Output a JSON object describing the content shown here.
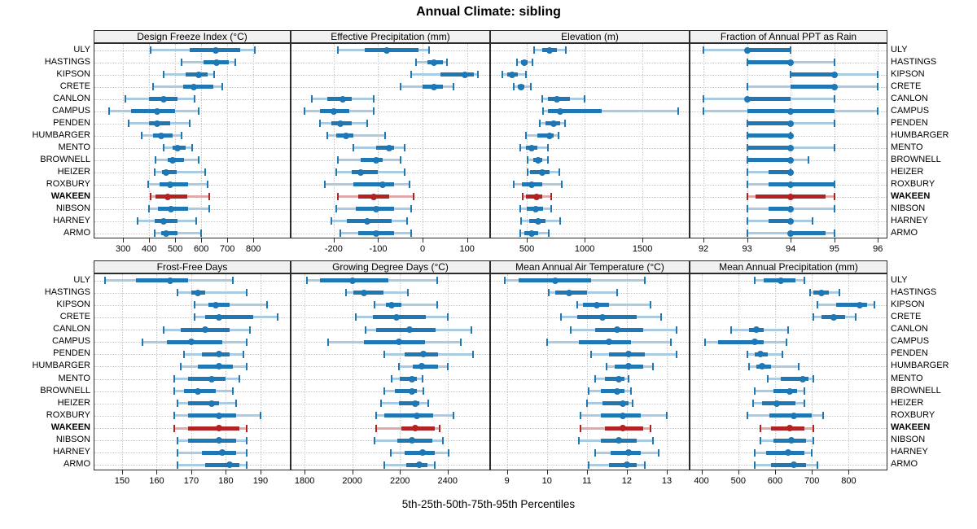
{
  "title": "Annual Climate: sibling",
  "caption": "5th-25th-50th-75th-95th Percentiles",
  "colors": {
    "series": "#1f77b4",
    "series_soft": "#aacbe2",
    "highlight": "#b22222",
    "highlight_soft": "#e1abab",
    "header_bg": "#f0f0f0",
    "panel_border": "#2b2b2b",
    "grid": "#c9c9c9"
  },
  "chart_data": {
    "type": "percentile_dotplot",
    "percentile_labels": [
      "5th",
      "25th",
      "50th",
      "75th",
      "95th"
    ],
    "grid": "dotted",
    "stations": [
      "ULY",
      "HASTINGS",
      "KIPSON",
      "CRETE",
      "CANLON",
      "CAMPUS",
      "PENDEN",
      "HUMBARGER",
      "MENTO",
      "BROWNELL",
      "HEIZER",
      "ROXBURY",
      "WAKEEN",
      "NIBSON",
      "HARNEY",
      "ARMO"
    ],
    "highlight_station": "WAKEEN",
    "panels": [
      {
        "title": "Design Freeze Index (°C)",
        "group": "top",
        "axis_domain": [
          190,
          940
        ],
        "ticks": [
          300,
          400,
          500,
          600,
          700,
          800
        ],
        "values": [
          [
            405,
            555,
            655,
            750,
            805
          ],
          [
            525,
            610,
            660,
            705,
            730
          ],
          [
            455,
            540,
            590,
            625,
            650
          ],
          [
            415,
            530,
            570,
            645,
            680
          ],
          [
            310,
            400,
            455,
            510,
            575
          ],
          [
            245,
            330,
            430,
            500,
            590
          ],
          [
            320,
            400,
            430,
            480,
            555
          ],
          [
            370,
            415,
            445,
            490,
            525
          ],
          [
            455,
            490,
            510,
            540,
            565
          ],
          [
            425,
            470,
            490,
            535,
            590
          ],
          [
            420,
            450,
            465,
            505,
            615
          ],
          [
            395,
            440,
            480,
            550,
            625
          ],
          [
            405,
            425,
            470,
            545,
            630
          ],
          [
            400,
            435,
            485,
            550,
            630
          ],
          [
            355,
            420,
            455,
            510,
            580
          ],
          [
            420,
            445,
            465,
            510,
            600
          ]
        ]
      },
      {
        "title": "Effective Precipitation (mm)",
        "group": "top",
        "axis_domain": [
          -295,
          150
        ],
        "ticks": [
          -200,
          -100,
          0,
          100
        ],
        "values": [
          [
            -190,
            -130,
            -80,
            -10,
            15
          ],
          [
            -15,
            10,
            25,
            45,
            55
          ],
          [
            -25,
            40,
            95,
            115,
            125
          ],
          [
            -50,
            0,
            25,
            45,
            70
          ],
          [
            -250,
            -215,
            -180,
            -160,
            -110
          ],
          [
            -265,
            -230,
            -200,
            -165,
            -110
          ],
          [
            -230,
            -205,
            -185,
            -160,
            -125
          ],
          [
            -215,
            -195,
            -172,
            -155,
            -85
          ],
          [
            -155,
            -105,
            -75,
            -65,
            -40
          ],
          [
            -190,
            -140,
            -105,
            -90,
            -50
          ],
          [
            -195,
            -160,
            -140,
            -100,
            -40
          ],
          [
            -220,
            -155,
            -90,
            -65,
            -30
          ],
          [
            -190,
            -145,
            -110,
            -75,
            -20
          ],
          [
            -195,
            -150,
            -105,
            -65,
            -25
          ],
          [
            -205,
            -170,
            -125,
            -70,
            -35
          ],
          [
            -185,
            -145,
            -105,
            -65,
            -25
          ]
        ]
      },
      {
        "title": "Elevation (m)",
        "group": "top",
        "axis_domain": [
          190,
          1900
        ],
        "ticks": [
          500,
          1000,
          1500
        ],
        "values": [
          [
            560,
            630,
            700,
            760,
            840
          ],
          [
            415,
            450,
            480,
            510,
            550
          ],
          [
            290,
            330,
            375,
            420,
            490
          ],
          [
            390,
            420,
            450,
            480,
            535
          ],
          [
            630,
            680,
            760,
            870,
            1000
          ],
          [
            640,
            680,
            790,
            1150,
            1810
          ],
          [
            610,
            660,
            730,
            790,
            830
          ],
          [
            490,
            590,
            700,
            730,
            775
          ],
          [
            445,
            495,
            545,
            590,
            680
          ],
          [
            510,
            555,
            595,
            630,
            685
          ],
          [
            510,
            530,
            635,
            700,
            780
          ],
          [
            390,
            460,
            540,
            630,
            805
          ],
          [
            465,
            495,
            585,
            635,
            710
          ],
          [
            445,
            500,
            575,
            640,
            710
          ],
          [
            450,
            520,
            600,
            660,
            790
          ],
          [
            440,
            480,
            545,
            600,
            690
          ]
        ]
      },
      {
        "title": "Fraction of Annual PPT as Rain",
        "group": "top",
        "axis_domain": [
          91.7,
          96.2
        ],
        "ticks": [
          92,
          93,
          94,
          95,
          96
        ],
        "values": [
          [
            92,
            93,
            93,
            94,
            94
          ],
          [
            93,
            93,
            94,
            94,
            95
          ],
          [
            94,
            94,
            95,
            95,
            96
          ],
          [
            93,
            94,
            95,
            95,
            96
          ],
          [
            92,
            93,
            93,
            94,
            95
          ],
          [
            92,
            93,
            94,
            95,
            96
          ],
          [
            93,
            93,
            94,
            94,
            95
          ],
          [
            93,
            93,
            94,
            94,
            94
          ],
          [
            93,
            93,
            94,
            94,
            95
          ],
          [
            93,
            93,
            94,
            94,
            94.4
          ],
          [
            93,
            93.5,
            94,
            94,
            94
          ],
          [
            93,
            93.5,
            94,
            95,
            95
          ],
          [
            93,
            93.2,
            94,
            94.8,
            95
          ],
          [
            93,
            93.5,
            94,
            94,
            95
          ],
          [
            93,
            93.5,
            94,
            94,
            94.5
          ],
          [
            93,
            94,
            94,
            94.8,
            95
          ]
        ]
      },
      {
        "title": "Frost-Free Days",
        "group": "bottom",
        "axis_domain": [
          142,
          198.5
        ],
        "ticks": [
          150,
          160,
          170,
          180,
          190
        ],
        "values": [
          [
            145,
            154,
            164,
            169,
            182
          ],
          [
            166,
            170,
            172,
            174,
            186
          ],
          [
            171,
            175,
            177,
            181,
            192
          ],
          [
            171,
            174,
            178,
            188,
            195
          ],
          [
            162,
            167,
            174,
            181,
            187
          ],
          [
            156,
            163,
            170,
            179,
            186
          ],
          [
            168,
            173,
            178,
            181,
            185
          ],
          [
            167,
            172,
            178,
            182,
            186
          ],
          [
            165,
            169,
            176,
            180,
            184
          ],
          [
            165,
            168,
            172,
            177,
            182
          ],
          [
            166,
            169,
            176,
            178,
            183
          ],
          [
            165,
            169,
            178,
            183,
            190
          ],
          [
            165,
            169,
            178,
            184,
            186
          ],
          [
            166,
            169,
            178,
            183,
            186
          ],
          [
            166,
            173,
            179,
            183,
            186
          ],
          [
            166,
            174,
            181,
            184,
            186
          ]
        ]
      },
      {
        "title": "Growing Degree Days (°C)",
        "group": "bottom",
        "axis_domain": [
          1745,
          2575
        ],
        "ticks": [
          1800,
          2000,
          2200,
          2400
        ],
        "values": [
          [
            1810,
            1865,
            2000,
            2150,
            2355
          ],
          [
            1975,
            2005,
            2050,
            2130,
            2235
          ],
          [
            2095,
            2140,
            2165,
            2205,
            2355
          ],
          [
            2015,
            2085,
            2185,
            2310,
            2400
          ],
          [
            2055,
            2100,
            2240,
            2350,
            2500
          ],
          [
            1900,
            2050,
            2195,
            2305,
            2455
          ],
          [
            2135,
            2220,
            2300,
            2360,
            2505
          ],
          [
            2195,
            2255,
            2290,
            2360,
            2400
          ],
          [
            2165,
            2200,
            2250,
            2270,
            2295
          ],
          [
            2135,
            2180,
            2250,
            2270,
            2300
          ],
          [
            2120,
            2195,
            2265,
            2280,
            2320
          ],
          [
            2100,
            2135,
            2270,
            2340,
            2425
          ],
          [
            2100,
            2205,
            2265,
            2345,
            2365
          ],
          [
            2095,
            2190,
            2250,
            2335,
            2380
          ],
          [
            2160,
            2220,
            2295,
            2345,
            2405
          ],
          [
            2135,
            2225,
            2280,
            2315,
            2345
          ]
        ]
      },
      {
        "title": "Mean Annual Air Temperature (°C)",
        "group": "bottom",
        "axis_domain": [
          8.6,
          13.55
        ],
        "ticks": [
          9,
          10,
          11,
          12,
          13
        ],
        "values": [
          [
            8.95,
            9.3,
            10.2,
            11.1,
            12.45
          ],
          [
            10.05,
            10.2,
            10.55,
            11.0,
            11.75
          ],
          [
            10.75,
            10.9,
            11.25,
            11.55,
            12.6
          ],
          [
            10.35,
            10.75,
            11.4,
            12.25,
            12.85
          ],
          [
            10.6,
            11.2,
            11.75,
            12.4,
            13.25
          ],
          [
            10.0,
            10.8,
            11.55,
            12.1,
            13.1
          ],
          [
            11.1,
            11.55,
            12.05,
            12.45,
            13.25
          ],
          [
            11.5,
            11.7,
            12.05,
            12.4,
            12.65
          ],
          [
            11.2,
            11.45,
            11.8,
            11.95,
            12.05
          ],
          [
            11.05,
            11.35,
            11.75,
            11.95,
            12.1
          ],
          [
            11.0,
            11.4,
            11.9,
            12.05,
            12.15
          ],
          [
            10.85,
            11.35,
            11.9,
            12.35,
            13.0
          ],
          [
            10.85,
            11.45,
            11.9,
            12.4,
            12.6
          ],
          [
            10.8,
            11.35,
            11.8,
            12.25,
            12.65
          ],
          [
            11.2,
            11.6,
            12.05,
            12.35,
            12.8
          ],
          [
            11.05,
            11.55,
            12.0,
            12.25,
            12.45
          ]
        ]
      },
      {
        "title": "Mean Annual Precipitation (mm)",
        "group": "bottom",
        "axis_domain": [
          370,
          903
        ],
        "ticks": [
          400,
          500,
          600,
          700,
          800
        ],
        "values": [
          [
            545,
            570,
            615,
            655,
            680
          ],
          [
            695,
            705,
            725,
            745,
            775
          ],
          [
            715,
            765,
            830,
            850,
            870
          ],
          [
            705,
            725,
            760,
            790,
            820
          ],
          [
            480,
            530,
            550,
            570,
            635
          ],
          [
            410,
            445,
            545,
            570,
            630
          ],
          [
            525,
            545,
            560,
            580,
            620
          ],
          [
            530,
            550,
            565,
            590,
            665
          ],
          [
            580,
            615,
            675,
            690,
            705
          ],
          [
            545,
            595,
            640,
            660,
            680
          ],
          [
            540,
            565,
            605,
            655,
            680
          ],
          [
            525,
            585,
            650,
            700,
            730
          ],
          [
            560,
            590,
            640,
            680,
            705
          ],
          [
            560,
            595,
            645,
            685,
            705
          ],
          [
            545,
            575,
            635,
            680,
            700
          ],
          [
            545,
            590,
            650,
            685,
            715
          ]
        ]
      }
    ]
  }
}
